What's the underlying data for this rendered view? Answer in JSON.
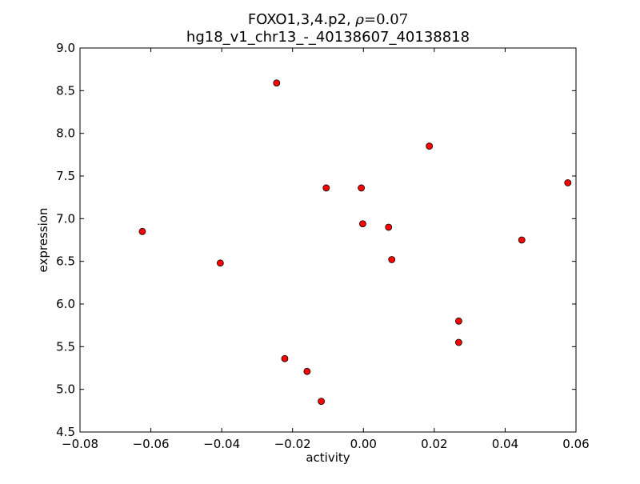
{
  "chart_data": {
    "type": "scatter",
    "title_line1_prefix": "FOXO1,3,4.p2, ",
    "title_rho_symbol": "ρ",
    "title_rho_value": "=0.07",
    "title_line2": "hg18_v1_chr13_-_40138607_40138818",
    "xlabel": "activity",
    "ylabel": "expression",
    "xlim": [
      -0.08,
      0.06
    ],
    "ylim": [
      4.5,
      9.0
    ],
    "xticks": [
      -0.08,
      -0.06,
      -0.04,
      -0.02,
      0.0,
      0.02,
      0.04,
      0.06
    ],
    "xtick_labels": [
      "−0.08",
      "−0.06",
      "−0.04",
      "−0.02",
      "0.00",
      "0.02",
      "0.04",
      "0.06"
    ],
    "yticks": [
      4.5,
      5.0,
      5.5,
      6.0,
      6.5,
      7.0,
      7.5,
      8.0,
      8.5,
      9.0
    ],
    "ytick_labels": [
      "4.5",
      "5.0",
      "5.5",
      "6.0",
      "6.5",
      "7.0",
      "7.5",
      "8.0",
      "8.5",
      "9.0"
    ],
    "grid": false,
    "marker_color": "#ff0000",
    "marker_edge_color": "#000000",
    "points": [
      {
        "x": -0.0624,
        "y": 6.85
      },
      {
        "x": -0.0404,
        "y": 6.48
      },
      {
        "x": -0.0245,
        "y": 8.59
      },
      {
        "x": -0.0222,
        "y": 5.36
      },
      {
        "x": -0.0159,
        "y": 5.21
      },
      {
        "x": -0.0119,
        "y": 4.86
      },
      {
        "x": -0.0105,
        "y": 7.36
      },
      {
        "x": -0.0006,
        "y": 7.36
      },
      {
        "x": -0.0002,
        "y": 6.94
      },
      {
        "x": 0.0071,
        "y": 6.9
      },
      {
        "x": 0.008,
        "y": 6.52
      },
      {
        "x": 0.0186,
        "y": 7.85
      },
      {
        "x": 0.0269,
        "y": 5.8
      },
      {
        "x": 0.0269,
        "y": 5.55
      },
      {
        "x": 0.0447,
        "y": 6.75
      },
      {
        "x": 0.0577,
        "y": 7.42
      }
    ]
  }
}
